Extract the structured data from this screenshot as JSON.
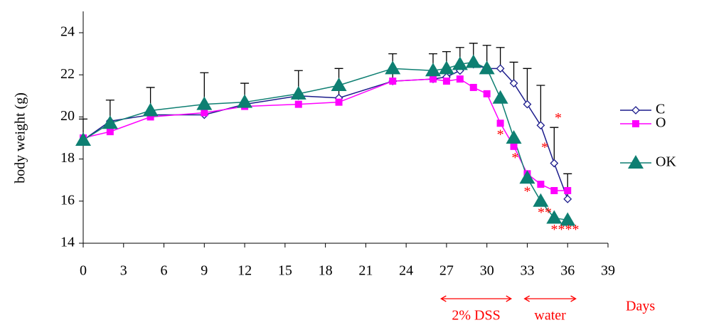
{
  "chart_data": {
    "type": "line",
    "y_label": "body weight (g)",
    "x_label": "Days",
    "x": [
      0,
      2,
      5,
      9,
      12,
      16,
      19,
      23,
      26,
      27,
      28,
      29,
      30,
      31,
      32,
      33,
      34,
      35,
      36
    ],
    "series": [
      {
        "name": "C",
        "color": "#1c1c8c",
        "marker": "diamond",
        "values": [
          18.9,
          19.8,
          20.1,
          20.1,
          20.6,
          21.0,
          20.9,
          21.7,
          21.8,
          21.9,
          22.2,
          22.5,
          22.3,
          22.3,
          21.6,
          20.6,
          19.6,
          17.8,
          16.1
        ],
        "errors": [
          1.0,
          1.0,
          1.3,
          2.0,
          1.0,
          1.2,
          1.4,
          1.3,
          1.2,
          1.2,
          1.1,
          1.0,
          1.1,
          1.0,
          1.0,
          1.7,
          1.9,
          1.7,
          1.2
        ]
      },
      {
        "name": "O",
        "color": "#ff00ff",
        "marker": "square",
        "values": [
          19.0,
          19.3,
          20.0,
          20.2,
          20.5,
          20.6,
          20.7,
          21.7,
          21.8,
          21.7,
          21.8,
          21.4,
          21.1,
          19.7,
          18.6,
          17.3,
          16.8,
          16.5,
          16.5
        ]
      },
      {
        "name": "OK",
        "color": "#0e7f72",
        "marker": "triangle",
        "values": [
          18.9,
          19.7,
          20.3,
          20.6,
          20.7,
          21.1,
          21.5,
          22.3,
          22.2,
          22.3,
          22.5,
          22.6,
          22.3,
          20.9,
          19.0,
          17.1,
          16.0,
          15.2,
          15.1
        ]
      }
    ],
    "xlim": [
      0,
      39
    ],
    "xticks": [
      0,
      3,
      6,
      9,
      12,
      15,
      18,
      21,
      24,
      27,
      30,
      33,
      36,
      39
    ],
    "ylim": [
      14,
      24
    ],
    "yticks": [
      14,
      16,
      18,
      20,
      22,
      24
    ],
    "grid": false,
    "legend": "right",
    "annotations": [
      {
        "text": "*",
        "x": 31.0,
        "y": 19.1
      },
      {
        "text": "*",
        "x": 32.1,
        "y": 18.0
      },
      {
        "text": "*",
        "x": 33.0,
        "y": 16.4
      },
      {
        "text": "*",
        "x": 34.3,
        "y": 18.5
      },
      {
        "text": "**",
        "x": 34.3,
        "y": 15.4
      },
      {
        "text": "*",
        "x": 35.3,
        "y": 19.9
      },
      {
        "text": "****",
        "x": 35.8,
        "y": 14.6
      }
    ],
    "periods": [
      {
        "label": "2% DSS",
        "from": 26.6,
        "to": 31.8
      },
      {
        "label": "water",
        "from": 32.8,
        "to": 36.6
      }
    ]
  }
}
